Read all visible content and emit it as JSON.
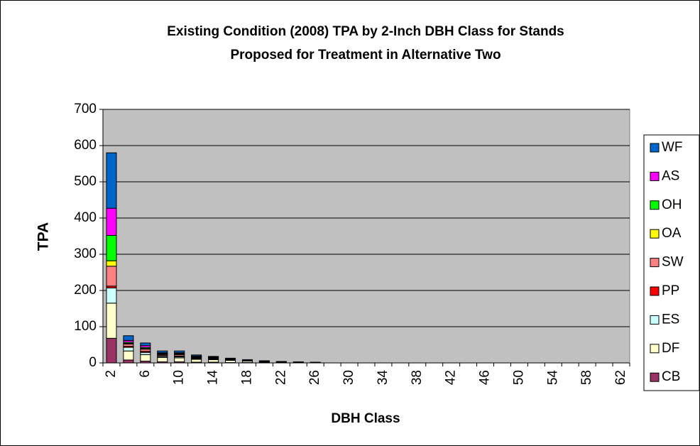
{
  "chart_data": {
    "type": "stacked_bar",
    "title": "Existing Condition (2008) TPA by 2-Inch DBH Class for Stands",
    "subtitle": "Proposed for Treatment in Alternative Two",
    "x_label": "DBH Class",
    "y_label": "TPA",
    "categories": [
      2,
      null,
      6,
      null,
      10,
      null,
      14,
      null,
      18,
      null,
      22,
      null,
      26,
      null,
      30,
      null,
      34,
      null,
      38,
      null,
      42,
      null,
      46,
      null,
      50,
      null,
      54,
      null,
      58,
      null,
      62
    ],
    "series": [
      {
        "name": "CB",
        "color": "#993366",
        "values": [
          68,
          8,
          5,
          3,
          3,
          2,
          2,
          1,
          1,
          1,
          0,
          0,
          0,
          0,
          0,
          0,
          0,
          0,
          0,
          0,
          0,
          0,
          0,
          0,
          0,
          0,
          0,
          0,
          0,
          0,
          0
        ]
      },
      {
        "name": "DF",
        "color": "#FFFFCC",
        "values": [
          97,
          25,
          18,
          12,
          11,
          8,
          7,
          6,
          4,
          2,
          2,
          2,
          1,
          0,
          0,
          0,
          0,
          0,
          0,
          0,
          0,
          0,
          0,
          0,
          0,
          0,
          0,
          0,
          0,
          0,
          0
        ]
      },
      {
        "name": "ES",
        "color": "#CCFFFF",
        "values": [
          42,
          10,
          6,
          3,
          3,
          2,
          2,
          1,
          1,
          1,
          1,
          0,
          0,
          0,
          0,
          0,
          0,
          0,
          0,
          0,
          0,
          0,
          0,
          0,
          0,
          0,
          0,
          0,
          0,
          0,
          0
        ]
      },
      {
        "name": "PP",
        "color": "#FF0000",
        "values": [
          5,
          3,
          3,
          2,
          2,
          2,
          1,
          1,
          1,
          0,
          0,
          0,
          0,
          0,
          0,
          0,
          0,
          0,
          0,
          0,
          0,
          0,
          0,
          0,
          0,
          0,
          0,
          0,
          0,
          0,
          0
        ]
      },
      {
        "name": "SW",
        "color": "#FF8080",
        "values": [
          55,
          6,
          6,
          3,
          4,
          2,
          2,
          1,
          1,
          1,
          0,
          0,
          0,
          0,
          0,
          0,
          0,
          0,
          0,
          0,
          0,
          0,
          0,
          0,
          0,
          0,
          0,
          0,
          0,
          0,
          0
        ]
      },
      {
        "name": "OA",
        "color": "#FFFF00",
        "values": [
          15,
          2,
          2,
          1,
          1,
          1,
          0,
          0,
          0,
          0,
          0,
          0,
          0,
          0,
          0,
          0,
          0,
          0,
          0,
          0,
          0,
          0,
          0,
          0,
          0,
          0,
          0,
          0,
          0,
          0,
          0
        ]
      },
      {
        "name": "OH",
        "color": "#00FF00",
        "values": [
          70,
          3,
          3,
          2,
          2,
          1,
          1,
          1,
          0,
          0,
          0,
          0,
          0,
          0,
          0,
          0,
          0,
          0,
          0,
          0,
          0,
          0,
          0,
          0,
          0,
          0,
          0,
          0,
          0,
          0,
          0
        ]
      },
      {
        "name": "AS",
        "color": "#FF00FF",
        "values": [
          75,
          5,
          5,
          2,
          2,
          1,
          1,
          0,
          0,
          0,
          0,
          0,
          0,
          0,
          0,
          0,
          0,
          0,
          0,
          0,
          0,
          0,
          0,
          0,
          0,
          0,
          0,
          0,
          0,
          0,
          0
        ]
      },
      {
        "name": "WF",
        "color": "#0066CC",
        "values": [
          153,
          13,
          7,
          5,
          5,
          3,
          2,
          2,
          1,
          1,
          1,
          1,
          1,
          0,
          0,
          0,
          0,
          0,
          0,
          0,
          0,
          0,
          0,
          0,
          0,
          0,
          0,
          0,
          0,
          0,
          0
        ]
      }
    ],
    "ylim": [
      0,
      700
    ],
    "yticks": [
      0,
      100,
      200,
      300,
      400,
      500,
      600,
      700
    ],
    "grid": true,
    "plot_background": "#C0C0C0",
    "legend": "right"
  }
}
